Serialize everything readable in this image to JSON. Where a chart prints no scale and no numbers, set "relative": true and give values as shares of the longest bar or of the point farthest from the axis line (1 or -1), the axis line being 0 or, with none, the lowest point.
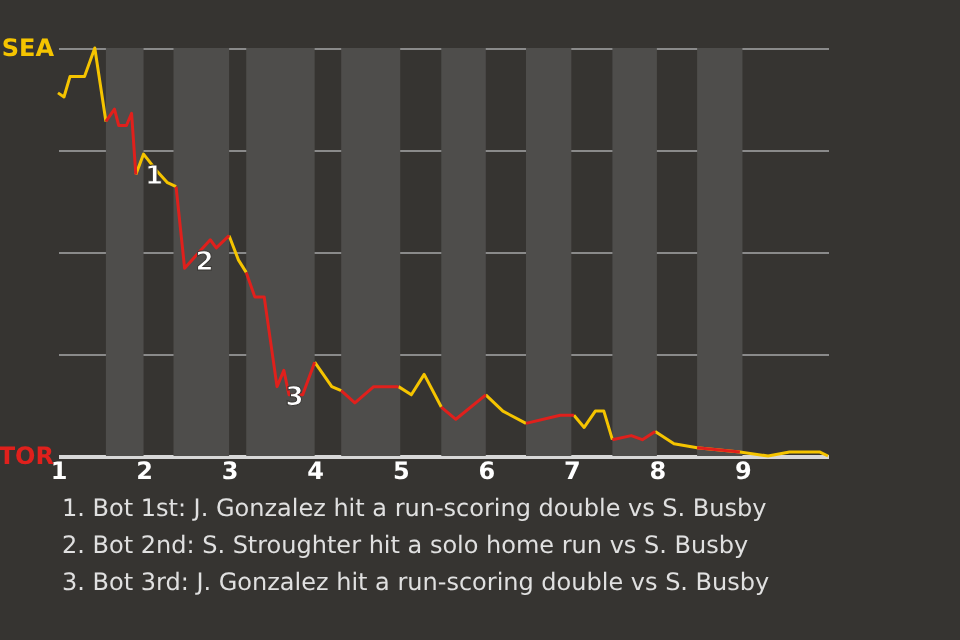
{
  "chart_data": {
    "type": "line",
    "relative": true,
    "x": [
      1.0,
      1.07,
      1.14,
      1.31,
      1.43,
      1.56,
      1.66,
      1.71,
      1.8,
      1.86,
      1.91,
      2.0,
      2.15,
      2.28,
      2.38,
      2.48,
      2.65,
      2.78,
      2.85,
      3.0,
      3.11,
      3.2,
      3.3,
      3.41,
      3.56,
      3.64,
      3.7,
      3.86,
      4.0,
      4.2,
      4.31,
      4.47,
      4.69,
      4.98,
      5.13,
      5.28,
      5.48,
      5.65,
      6.0,
      6.2,
      6.47,
      6.87,
      7.03,
      7.15,
      7.28,
      7.38,
      7.48,
      7.7,
      7.83,
      7.98,
      8.2,
      8.47,
      8.97,
      9.3,
      9.55,
      9.9,
      10.0
    ],
    "series": [
      {
        "color": "#f5c400",
        "values": [
          0.89,
          0.88,
          0.93,
          0.93,
          1,
          0.82,
          null,
          null,
          null,
          null,
          0.69,
          0.74,
          0.7,
          0.67,
          0.66,
          null,
          null,
          null,
          null,
          0.54,
          0.48,
          0.45,
          null,
          null,
          null,
          null,
          null,
          null,
          0.23,
          0.17,
          0.16,
          null,
          null,
          0.17,
          0.15,
          0.2,
          0.12,
          null,
          0.15,
          0.11,
          0.08,
          null,
          0.1,
          0.07,
          0.11,
          0.11,
          0.04,
          null,
          null,
          0.06,
          0.03,
          0.02,
          0.01,
          0,
          0.01,
          0.01,
          0
        ]
      },
      {
        "color": "#e0201c",
        "values": [
          null,
          null,
          null,
          null,
          null,
          0.82,
          0.85,
          0.81,
          0.81,
          0.84,
          0.69,
          null,
          null,
          null,
          0.66,
          0.46,
          0.5,
          0.53,
          0.51,
          0.54,
          null,
          0.45,
          0.39,
          0.39,
          0.17,
          0.21,
          0.15,
          0.15,
          0.23,
          null,
          0.16,
          0.13,
          0.17,
          0.17,
          null,
          null,
          0.12,
          0.09,
          0.15,
          null,
          0.08,
          0.1,
          0.1,
          null,
          null,
          null,
          0.04,
          0.05,
          0.04,
          0.06,
          null,
          0.02,
          0.01,
          null,
          null,
          null,
          null
        ]
      }
    ],
    "xlim": [
      1,
      10
    ],
    "xticks": [
      1,
      2,
      3,
      4,
      5,
      6,
      7,
      8,
      9
    ],
    "grid": "y",
    "bands": [
      {
        "axis": "x",
        "from": 1.56,
        "to": 2.0,
        "color": "#4e4d4b"
      },
      {
        "axis": "x",
        "from": 2.35,
        "to": 3.0,
        "color": "#4e4d4b"
      },
      {
        "axis": "x",
        "from": 3.2,
        "to": 4.0,
        "color": "#4e4d4b"
      },
      {
        "axis": "x",
        "from": 4.31,
        "to": 5.0,
        "color": "#4e4d4b"
      },
      {
        "axis": "x",
        "from": 5.48,
        "to": 6.0,
        "color": "#4e4d4b"
      },
      {
        "axis": "x",
        "from": 6.47,
        "to": 7.0,
        "color": "#4e4d4b"
      },
      {
        "axis": "x",
        "from": 7.48,
        "to": 8.0,
        "color": "#4e4d4b"
      },
      {
        "axis": "x",
        "from": 8.47,
        "to": 9.0,
        "color": "#4e4d4b"
      }
    ],
    "annotations": [
      "SEA",
      "TOR",
      {
        "text": "1",
        "x": 1.96,
        "y": 0.7
      },
      {
        "text": "2",
        "x": 2.55,
        "y": 0.49
      },
      {
        "text": "3",
        "x": 3.6,
        "y": 0.16
      },
      "1. Bot 1st: J. Gonzalez hit a run-scoring double vs S. Busby",
      "2. Bot 2nd: S. Stroughter hit a solo home run vs S. Busby",
      "3. Bot 3rd: J. Gonzalez hit a run-scoring double vs S. Busby"
    ]
  }
}
